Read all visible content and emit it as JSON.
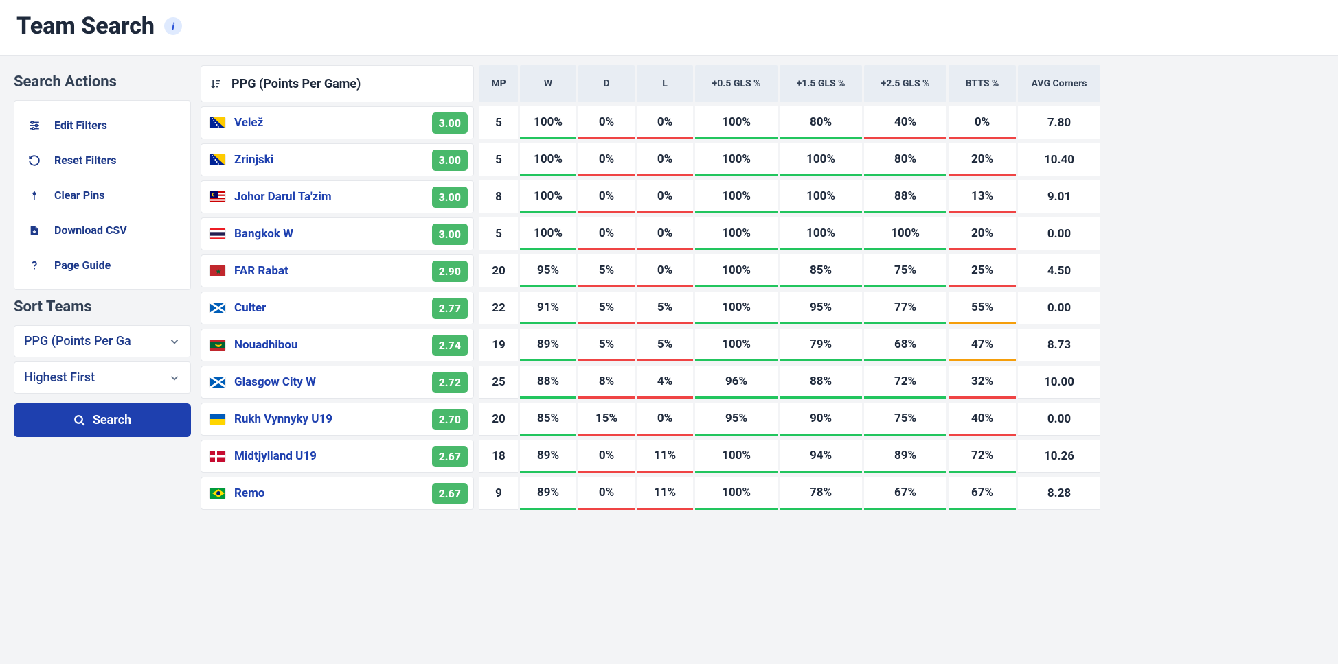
{
  "page": {
    "title": "Team Search",
    "sort_header": "PPG (Points Per Game)"
  },
  "sidebar": {
    "actions_title": "Search Actions",
    "sort_title": "Sort Teams",
    "items": {
      "edit": "Edit Filters",
      "reset": "Reset Filters",
      "clear": "Clear Pins",
      "download": "Download CSV",
      "guide": "Page Guide"
    },
    "sort_by": "PPG (Points Per Ga",
    "sort_dir": "Highest First",
    "search_label": "Search"
  },
  "columns": [
    "MP",
    "W",
    "D",
    "L",
    "+0.5 GLS %",
    "+1.5 GLS %",
    "+2.5 GLS %",
    "BTTS %",
    "AVG Corners"
  ],
  "colors": {
    "green": "#22c55e",
    "red": "#ef4444",
    "orange": "#f59e0b",
    "link": "#1e40af",
    "badge": "#49b96b"
  },
  "rows": [
    {
      "flag": "ba",
      "team": "Velež",
      "ppg": "3.00",
      "mp": "5",
      "w": {
        "v": "100%",
        "u": "green"
      },
      "d": {
        "v": "0%",
        "u": "red"
      },
      "l": {
        "v": "0%",
        "u": "red"
      },
      "g05": {
        "v": "100%",
        "u": "green"
      },
      "g15": {
        "v": "80%",
        "u": "green"
      },
      "g25": {
        "v": "40%",
        "u": "red"
      },
      "btts": {
        "v": "0%",
        "u": "red"
      },
      "corners": "7.80"
    },
    {
      "flag": "ba",
      "team": "Zrinjski",
      "ppg": "3.00",
      "mp": "5",
      "w": {
        "v": "100%",
        "u": "green"
      },
      "d": {
        "v": "0%",
        "u": "red"
      },
      "l": {
        "v": "0%",
        "u": "red"
      },
      "g05": {
        "v": "100%",
        "u": "green"
      },
      "g15": {
        "v": "100%",
        "u": "green"
      },
      "g25": {
        "v": "80%",
        "u": "green"
      },
      "btts": {
        "v": "20%",
        "u": "red"
      },
      "corners": "10.40"
    },
    {
      "flag": "my",
      "team": "Johor Darul Ta'zim",
      "ppg": "3.00",
      "mp": "8",
      "w": {
        "v": "100%",
        "u": "green"
      },
      "d": {
        "v": "0%",
        "u": "red"
      },
      "l": {
        "v": "0%",
        "u": "red"
      },
      "g05": {
        "v": "100%",
        "u": "green"
      },
      "g15": {
        "v": "100%",
        "u": "green"
      },
      "g25": {
        "v": "88%",
        "u": "green"
      },
      "btts": {
        "v": "13%",
        "u": "red"
      },
      "corners": "9.01"
    },
    {
      "flag": "th",
      "team": "Bangkok W",
      "ppg": "3.00",
      "mp": "5",
      "w": {
        "v": "100%",
        "u": "green"
      },
      "d": {
        "v": "0%",
        "u": "red"
      },
      "l": {
        "v": "0%",
        "u": "red"
      },
      "g05": {
        "v": "100%",
        "u": "green"
      },
      "g15": {
        "v": "100%",
        "u": "green"
      },
      "g25": {
        "v": "100%",
        "u": "green"
      },
      "btts": {
        "v": "20%",
        "u": "red"
      },
      "corners": "0.00"
    },
    {
      "flag": "ma",
      "team": "FAR Rabat",
      "ppg": "2.90",
      "mp": "20",
      "w": {
        "v": "95%",
        "u": "green"
      },
      "d": {
        "v": "5%",
        "u": "red"
      },
      "l": {
        "v": "0%",
        "u": "red"
      },
      "g05": {
        "v": "100%",
        "u": "green"
      },
      "g15": {
        "v": "85%",
        "u": "green"
      },
      "g25": {
        "v": "75%",
        "u": "green"
      },
      "btts": {
        "v": "25%",
        "u": "red"
      },
      "corners": "4.50"
    },
    {
      "flag": "sco",
      "team": "Culter",
      "ppg": "2.77",
      "mp": "22",
      "w": {
        "v": "91%",
        "u": "green"
      },
      "d": {
        "v": "5%",
        "u": "red"
      },
      "l": {
        "v": "5%",
        "u": "red"
      },
      "g05": {
        "v": "100%",
        "u": "green"
      },
      "g15": {
        "v": "95%",
        "u": "green"
      },
      "g25": {
        "v": "77%",
        "u": "green"
      },
      "btts": {
        "v": "55%",
        "u": "orange"
      },
      "corners": "0.00"
    },
    {
      "flag": "mr",
      "team": "Nouadhibou",
      "ppg": "2.74",
      "mp": "19",
      "w": {
        "v": "89%",
        "u": "green"
      },
      "d": {
        "v": "5%",
        "u": "red"
      },
      "l": {
        "v": "5%",
        "u": "red"
      },
      "g05": {
        "v": "100%",
        "u": "green"
      },
      "g15": {
        "v": "79%",
        "u": "green"
      },
      "g25": {
        "v": "68%",
        "u": "green"
      },
      "btts": {
        "v": "47%",
        "u": "orange"
      },
      "corners": "8.73"
    },
    {
      "flag": "sco",
      "team": "Glasgow City W",
      "ppg": "2.72",
      "mp": "25",
      "w": {
        "v": "88%",
        "u": "green"
      },
      "d": {
        "v": "8%",
        "u": "red"
      },
      "l": {
        "v": "4%",
        "u": "red"
      },
      "g05": {
        "v": "96%",
        "u": "green"
      },
      "g15": {
        "v": "88%",
        "u": "green"
      },
      "g25": {
        "v": "72%",
        "u": "green"
      },
      "btts": {
        "v": "32%",
        "u": "red"
      },
      "corners": "10.00"
    },
    {
      "flag": "ua",
      "team": "Rukh Vynnyky U19",
      "ppg": "2.70",
      "mp": "20",
      "w": {
        "v": "85%",
        "u": "green"
      },
      "d": {
        "v": "15%",
        "u": "red"
      },
      "l": {
        "v": "0%",
        "u": "red"
      },
      "g05": {
        "v": "95%",
        "u": "green"
      },
      "g15": {
        "v": "90%",
        "u": "green"
      },
      "g25": {
        "v": "75%",
        "u": "green"
      },
      "btts": {
        "v": "40%",
        "u": "red"
      },
      "corners": "0.00"
    },
    {
      "flag": "dk",
      "team": "Midtjylland U19",
      "ppg": "2.67",
      "mp": "18",
      "w": {
        "v": "89%",
        "u": "green"
      },
      "d": {
        "v": "0%",
        "u": "red"
      },
      "l": {
        "v": "11%",
        "u": "red"
      },
      "g05": {
        "v": "100%",
        "u": "green"
      },
      "g15": {
        "v": "94%",
        "u": "green"
      },
      "g25": {
        "v": "89%",
        "u": "green"
      },
      "btts": {
        "v": "72%",
        "u": "green"
      },
      "corners": "10.26"
    },
    {
      "flag": "br",
      "team": "Remo",
      "ppg": "2.67",
      "mp": "9",
      "w": {
        "v": "89%",
        "u": "green"
      },
      "d": {
        "v": "0%",
        "u": "red"
      },
      "l": {
        "v": "11%",
        "u": "red"
      },
      "g05": {
        "v": "100%",
        "u": "green"
      },
      "g15": {
        "v": "78%",
        "u": "green"
      },
      "g25": {
        "v": "67%",
        "u": "green"
      },
      "btts": {
        "v": "67%",
        "u": "green"
      },
      "corners": "8.28"
    }
  ]
}
